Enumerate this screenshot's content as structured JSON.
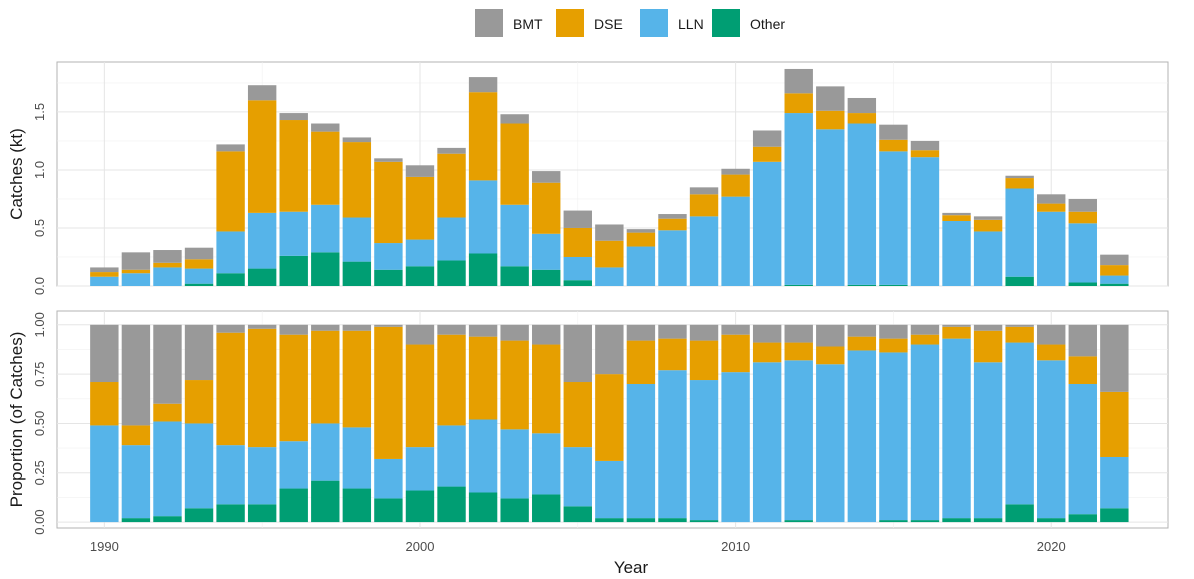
{
  "legend": {
    "items": [
      {
        "key": "bmt",
        "label": "BMT",
        "color": "#999999"
      },
      {
        "key": "dse",
        "label": "DSE",
        "color": "#E69F00"
      },
      {
        "key": "lln",
        "label": "LLN",
        "color": "#56B4E9"
      },
      {
        "key": "other",
        "label": "Other",
        "color": "#009E73"
      }
    ]
  },
  "chart_data": [
    {
      "type": "bar",
      "stacked": true,
      "ylabel": "Catches (kt)",
      "xlabel": "",
      "xlim": [
        1988.5,
        2023.7
      ],
      "ylim": [
        0,
        1.93
      ],
      "x_ticks": [
        1990,
        2000,
        2010,
        2020
      ],
      "y_ticks": [
        0.0,
        0.5,
        1.0,
        1.5
      ],
      "y_tick_labels": [
        "0.0",
        "0.5",
        "1.0",
        "1.5"
      ],
      "grid": true,
      "legend_position": "top",
      "categories": [
        1990,
        1991,
        1992,
        1993,
        1994,
        1995,
        1996,
        1997,
        1998,
        1999,
        2000,
        2001,
        2002,
        2003,
        2004,
        2005,
        2006,
        2007,
        2008,
        2009,
        2010,
        2011,
        2012,
        2013,
        2014,
        2015,
        2016,
        2017,
        2018,
        2019,
        2020,
        2021,
        2022
      ],
      "series": [
        {
          "name": "Other",
          "values": [
            0.0,
            0.0,
            0.0,
            0.02,
            0.11,
            0.15,
            0.26,
            0.29,
            0.21,
            0.14,
            0.17,
            0.22,
            0.28,
            0.17,
            0.14,
            0.05,
            0.0,
            0.0,
            0.0,
            0.0,
            0.0,
            0.0,
            0.01,
            0.0,
            0.01,
            0.01,
            0.0,
            0.0,
            0.0,
            0.08,
            0.0,
            0.03,
            0.02
          ]
        },
        {
          "name": "LLN",
          "values": [
            0.08,
            0.11,
            0.16,
            0.13,
            0.36,
            0.48,
            0.38,
            0.41,
            0.38,
            0.23,
            0.23,
            0.37,
            0.63,
            0.53,
            0.31,
            0.2,
            0.16,
            0.34,
            0.48,
            0.6,
            0.77,
            1.07,
            1.48,
            1.35,
            1.39,
            1.15,
            1.11,
            0.56,
            0.47,
            0.76,
            0.64,
            0.51,
            0.07
          ]
        },
        {
          "name": "DSE",
          "values": [
            0.04,
            0.03,
            0.04,
            0.08,
            0.69,
            0.97,
            0.79,
            0.63,
            0.65,
            0.7,
            0.54,
            0.55,
            0.76,
            0.7,
            0.44,
            0.25,
            0.23,
            0.12,
            0.1,
            0.19,
            0.19,
            0.13,
            0.17,
            0.16,
            0.09,
            0.1,
            0.06,
            0.05,
            0.1,
            0.09,
            0.07,
            0.1,
            0.09
          ]
        },
        {
          "name": "BMT",
          "values": [
            0.04,
            0.15,
            0.11,
            0.1,
            0.06,
            0.13,
            0.06,
            0.07,
            0.04,
            0.03,
            0.1,
            0.05,
            0.13,
            0.08,
            0.1,
            0.15,
            0.14,
            0.03,
            0.04,
            0.06,
            0.05,
            0.14,
            0.21,
            0.21,
            0.13,
            0.13,
            0.08,
            0.02,
            0.03,
            0.02,
            0.08,
            0.11,
            0.09
          ]
        }
      ]
    },
    {
      "type": "bar",
      "stacked": true,
      "ylabel": "Proportion (of Catches)",
      "xlabel": "Year",
      "xlim": [
        1988.5,
        2023.7
      ],
      "ylim": [
        -0.03,
        1.07
      ],
      "x_ticks": [
        1990,
        2000,
        2010,
        2020
      ],
      "x_tick_labels": [
        "1990",
        "2000",
        "2010",
        "2020"
      ],
      "y_ticks": [
        0.0,
        0.25,
        0.5,
        0.75,
        1.0
      ],
      "y_tick_labels": [
        "0.00",
        "0.25",
        "0.50",
        "0.75",
        "1.00"
      ],
      "grid": true,
      "categories": [
        1990,
        1991,
        1992,
        1993,
        1994,
        1995,
        1996,
        1997,
        1998,
        1999,
        2000,
        2001,
        2002,
        2003,
        2004,
        2005,
        2006,
        2007,
        2008,
        2009,
        2010,
        2011,
        2012,
        2013,
        2014,
        2015,
        2016,
        2017,
        2018,
        2019,
        2020,
        2021,
        2022
      ],
      "series": [
        {
          "name": "Other",
          "values": [
            0.0,
            0.02,
            0.03,
            0.07,
            0.09,
            0.09,
            0.17,
            0.21,
            0.17,
            0.12,
            0.16,
            0.18,
            0.15,
            0.12,
            0.14,
            0.08,
            0.02,
            0.02,
            0.02,
            0.01,
            0.0,
            0.0,
            0.01,
            0.0,
            0.0,
            0.01,
            0.01,
            0.02,
            0.02,
            0.09,
            0.02,
            0.04,
            0.07
          ]
        },
        {
          "name": "LLN",
          "values": [
            0.49,
            0.37,
            0.48,
            0.43,
            0.3,
            0.29,
            0.24,
            0.29,
            0.31,
            0.2,
            0.22,
            0.31,
            0.37,
            0.35,
            0.31,
            0.3,
            0.29,
            0.68,
            0.75,
            0.71,
            0.76,
            0.81,
            0.81,
            0.8,
            0.87,
            0.85,
            0.89,
            0.91,
            0.79,
            0.82,
            0.8,
            0.66,
            0.26
          ]
        },
        {
          "name": "DSE",
          "values": [
            0.22,
            0.1,
            0.09,
            0.22,
            0.57,
            0.6,
            0.54,
            0.47,
            0.49,
            0.67,
            0.52,
            0.46,
            0.42,
            0.45,
            0.45,
            0.33,
            0.44,
            0.22,
            0.16,
            0.2,
            0.19,
            0.1,
            0.09,
            0.09,
            0.07,
            0.07,
            0.05,
            0.06,
            0.16,
            0.08,
            0.08,
            0.14,
            0.33
          ]
        },
        {
          "name": "BMT",
          "values": [
            0.29,
            0.51,
            0.4,
            0.28,
            0.04,
            0.02,
            0.05,
            0.03,
            0.03,
            0.01,
            0.1,
            0.05,
            0.06,
            0.08,
            0.1,
            0.29,
            0.25,
            0.08,
            0.07,
            0.08,
            0.05,
            0.09,
            0.09,
            0.11,
            0.06,
            0.07,
            0.05,
            0.01,
            0.03,
            0.01,
            0.1,
            0.16,
            0.34
          ]
        }
      ]
    }
  ]
}
